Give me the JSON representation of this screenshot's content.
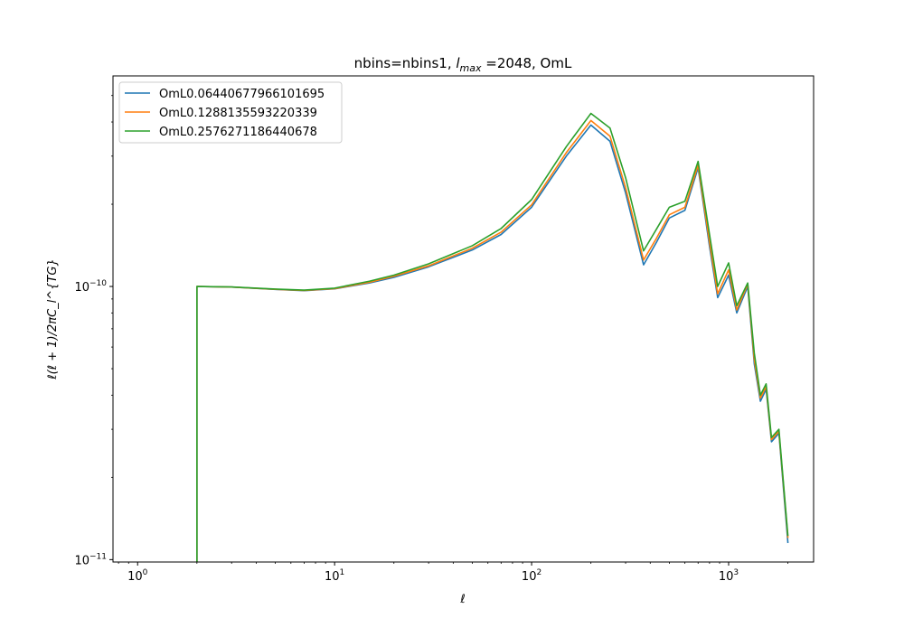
{
  "chart_data": {
    "type": "line",
    "title": "nbins=nbins1, $l_{max}$ =2048, OmL",
    "title_parts": {
      "prefix": "nbins=nbins1, ",
      "lmax_symbol": "l",
      "lmax_subscript": "max",
      "suffix": " =2048, OmL"
    },
    "xlabel": "ℓ",
    "ylabel": "ℓ(ℓ + 1)/2πC_l^{TG}",
    "x_scale": "log",
    "y_scale": "log",
    "xlim": [
      0.75,
      2700
    ],
    "ylim": [
      9.8e-12,
      5.9e-10
    ],
    "x_ticks": [
      {
        "value": 1,
        "base": "10",
        "exp": "0"
      },
      {
        "value": 10,
        "base": "10",
        "exp": "1"
      },
      {
        "value": 100,
        "base": "10",
        "exp": "2"
      },
      {
        "value": 1000,
        "base": "10",
        "exp": "3"
      }
    ],
    "y_ticks": [
      {
        "value": 1e-11,
        "base": "10",
        "exp": "−11"
      },
      {
        "value": 1e-10,
        "base": "10",
        "exp": "−10"
      }
    ],
    "legend_position": "top-left",
    "grid": false,
    "x": [
      2,
      3,
      5,
      7,
      10,
      15,
      20,
      30,
      50,
      70,
      100,
      150,
      200,
      250,
      300,
      370,
      430,
      500,
      600,
      700,
      800,
      880,
      1000,
      1100,
      1250,
      1350,
      1450,
      1550,
      1650,
      1800,
      2000
    ],
    "series": [
      {
        "name": "OmL0.06440677966101695",
        "color": "#1f77b4",
        "values": [
          1e-10,
          9.95e-11,
          9.75e-11,
          9.65e-11,
          9.8e-11,
          1.03e-10,
          1.08e-10,
          1.18e-10,
          1.36e-10,
          1.55e-10,
          1.95e-10,
          3e-10,
          3.9e-10,
          3.4e-10,
          2.2e-10,
          1.2e-10,
          1.45e-10,
          1.78e-10,
          1.9e-10,
          2.72e-10,
          1.4e-10,
          9.1e-11,
          1.1e-10,
          8e-11,
          1e-10,
          5.2e-11,
          3.8e-11,
          4.2e-11,
          2.7e-11,
          2.9e-11,
          1.15e-11
        ]
      },
      {
        "name": "OmL0.1288135593220339",
        "color": "#ff7f0e",
        "values": [
          1e-10,
          9.95e-11,
          9.76e-11,
          9.67e-11,
          9.82e-11,
          1.035e-10,
          1.09e-10,
          1.19e-10,
          1.38e-10,
          1.58e-10,
          1.99e-10,
          3.09e-10,
          4.05e-10,
          3.55e-10,
          2.3e-10,
          1.25e-10,
          1.5e-10,
          1.83e-10,
          1.95e-10,
          2.78e-10,
          1.45e-10,
          9.4e-11,
          1.15e-10,
          8.2e-11,
          1.02e-10,
          5.4e-11,
          3.9e-11,
          4.3e-11,
          2.75e-11,
          2.95e-11,
          1.2e-11
        ]
      },
      {
        "name": "OmL0.2576271186440678",
        "color": "#2ca02c",
        "values": [
          1e-10,
          9.96e-11,
          9.78e-11,
          9.7e-11,
          9.86e-11,
          1.045e-10,
          1.1e-10,
          1.21e-10,
          1.41e-10,
          1.63e-10,
          2.08e-10,
          3.25e-10,
          4.3e-10,
          3.8e-10,
          2.5e-10,
          1.35e-10,
          1.62e-10,
          1.95e-10,
          2.05e-10,
          2.87e-10,
          1.55e-10,
          1e-10,
          1.22e-10,
          8.5e-11,
          1.03e-10,
          5.7e-11,
          4e-11,
          4.4e-11,
          2.8e-11,
          3e-11,
          1.22e-11
        ]
      }
    ],
    "initial_drop": {
      "x": 2,
      "to": 9.8e-12
    }
  }
}
